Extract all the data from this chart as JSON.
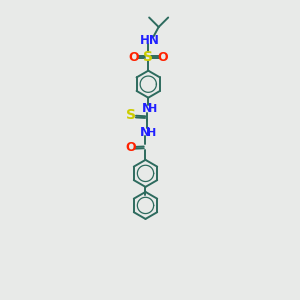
{
  "bg_color": "#e8eae8",
  "bond_color": "#2d6b5e",
  "n_color": "#2020ff",
  "o_color": "#ff2200",
  "s_color": "#cccc00",
  "font_size": 8.5,
  "bond_lw": 1.4,
  "fig_w": 3.0,
  "fig_h": 3.0,
  "dpi": 100,
  "xlim": [
    0,
    10
  ],
  "ylim": [
    0,
    17
  ]
}
